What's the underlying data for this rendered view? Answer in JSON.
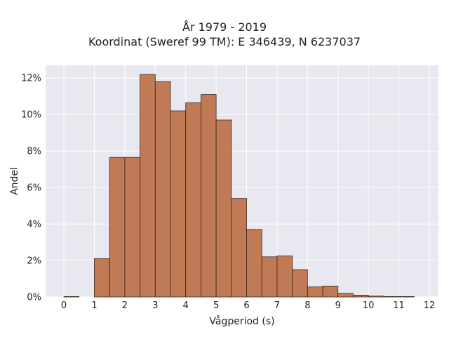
{
  "chart_data": {
    "type": "bar",
    "title_line1": "År 1979 - 2019",
    "title_line2": "Koordinat (Sweref 99 TM): E 346439, N 6237037",
    "xlabel": "Vågperiod (s)",
    "ylabel": "Andel",
    "xlim": [
      -0.6,
      12.3
    ],
    "ylim": [
      0,
      12.7
    ],
    "x_ticks": [
      0,
      1,
      2,
      3,
      4,
      5,
      6,
      7,
      8,
      9,
      10,
      11,
      12
    ],
    "y_ticks": [
      0,
      2,
      4,
      6,
      8,
      10,
      12
    ],
    "y_tick_labels": [
      "0%",
      "2%",
      "4%",
      "6%",
      "8%",
      "10%",
      "12%"
    ],
    "bin_width": 0.5,
    "bins": [
      {
        "x0": 0.0,
        "value": 0.02
      },
      {
        "x0": 1.0,
        "value": 2.1
      },
      {
        "x0": 1.5,
        "value": 7.65
      },
      {
        "x0": 2.0,
        "value": 7.65
      },
      {
        "x0": 2.5,
        "value": 12.2
      },
      {
        "x0": 3.0,
        "value": 11.8
      },
      {
        "x0": 3.5,
        "value": 10.2
      },
      {
        "x0": 4.0,
        "value": 10.65
      },
      {
        "x0": 4.5,
        "value": 11.1
      },
      {
        "x0": 5.0,
        "value": 9.7
      },
      {
        "x0": 5.5,
        "value": 5.4
      },
      {
        "x0": 6.0,
        "value": 3.7
      },
      {
        "x0": 6.5,
        "value": 2.2
      },
      {
        "x0": 7.0,
        "value": 2.25
      },
      {
        "x0": 7.5,
        "value": 1.5
      },
      {
        "x0": 8.0,
        "value": 0.55
      },
      {
        "x0": 8.5,
        "value": 0.6
      },
      {
        "x0": 9.0,
        "value": 0.2
      },
      {
        "x0": 9.5,
        "value": 0.1
      },
      {
        "x0": 10.0,
        "value": 0.05
      },
      {
        "x0": 10.5,
        "value": 0.02
      },
      {
        "x0": 11.0,
        "value": 0.01
      }
    ],
    "grid": true,
    "bar_color": "#c07a55",
    "bar_edge_color": "#3a2418",
    "plot_bg_color": "#e8e8f0",
    "grid_color": "#ffffff"
  }
}
